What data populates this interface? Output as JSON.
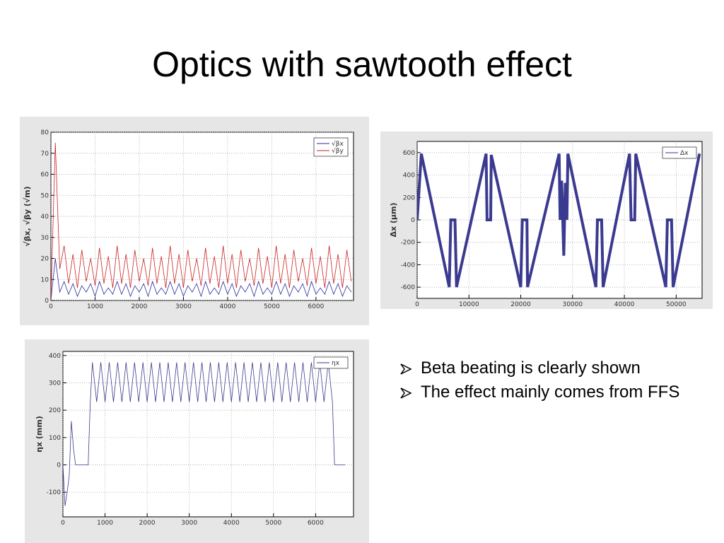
{
  "title": "Optics with sawtooth effect",
  "bullets": [
    "Beta beating is clearly shown",
    "The effect mainly comes from FFS"
  ],
  "chart_data": [
    {
      "type": "line",
      "ylabel": "√βx, √βy (√m)",
      "legend": "upper right",
      "grid": true,
      "xlim": [
        0,
        6850
      ],
      "ylim": [
        0,
        80
      ],
      "xticks": [
        0,
        1000,
        2000,
        3000,
        4000,
        5000,
        6000
      ],
      "yticks": [
        0,
        10,
        20,
        30,
        40,
        50,
        60,
        70,
        80
      ],
      "x": [
        0,
        100,
        200,
        300,
        400,
        500,
        600,
        700,
        800,
        900,
        1000,
        1100,
        1200,
        1300,
        1400,
        1500,
        1600,
        1700,
        1800,
        1900,
        2000,
        2100,
        2200,
        2300,
        2400,
        2500,
        2600,
        2700,
        2800,
        2900,
        3000,
        3100,
        3200,
        3300,
        3400,
        3500,
        3600,
        3700,
        3800,
        3900,
        4000,
        4100,
        4200,
        4300,
        4400,
        4500,
        4600,
        4700,
        4800,
        4900,
        5000,
        5100,
        5200,
        5300,
        5400,
        5500,
        5600,
        5700,
        5800,
        5900,
        6000,
        6100,
        6200,
        6300,
        6400,
        6500,
        6600,
        6700,
        6800
      ],
      "series": [
        {
          "name": "√βx",
          "color": "#2a2aa0",
          "values": [
            0,
            20,
            4,
            9,
            3,
            8,
            2,
            7,
            4,
            8,
            2,
            9,
            3,
            6,
            3,
            9,
            3,
            8,
            2,
            7,
            4,
            8,
            2,
            9,
            3,
            6,
            3,
            9,
            3,
            8,
            2,
            7,
            4,
            8,
            2,
            9,
            3,
            6,
            3,
            9,
            3,
            8,
            2,
            7,
            4,
            8,
            2,
            9,
            3,
            6,
            3,
            9,
            3,
            8,
            2,
            7,
            4,
            8,
            2,
            9,
            3,
            6,
            3,
            9,
            3,
            8,
            2,
            7,
            4
          ]
        },
        {
          "name": "√βy",
          "color": "#cc2222",
          "values": [
            0,
            75,
            15,
            26,
            8,
            22,
            6,
            24,
            9,
            20,
            7,
            25,
            8,
            21,
            6,
            26,
            8,
            22,
            6,
            24,
            9,
            20,
            7,
            25,
            8,
            21,
            6,
            26,
            8,
            22,
            6,
            24,
            9,
            20,
            7,
            25,
            8,
            21,
            6,
            26,
            8,
            22,
            6,
            24,
            9,
            20,
            7,
            25,
            8,
            21,
            6,
            26,
            8,
            22,
            6,
            24,
            9,
            20,
            7,
            25,
            8,
            21,
            6,
            26,
            8,
            22,
            6,
            24,
            9
          ]
        }
      ]
    },
    {
      "type": "line",
      "ylabel": "Δx (μm)",
      "legend": "upper right",
      "grid": true,
      "xlim": [
        0,
        55000
      ],
      "ylim": [
        -700,
        700
      ],
      "xticks": [
        0,
        10000,
        20000,
        30000,
        40000,
        50000
      ],
      "yticks": [
        -600,
        -400,
        -200,
        0,
        200,
        400,
        600
      ],
      "x": [
        0,
        800,
        6200,
        6500,
        7300,
        7600,
        13300,
        13500,
        14200,
        14300,
        20000,
        20300,
        21200,
        21300,
        27400,
        27600,
        27900,
        28300,
        28600,
        28900,
        29100,
        34500,
        34800,
        35600,
        35900,
        41000,
        41300,
        42000,
        42200,
        48000,
        48300,
        49100,
        49400,
        54500
      ],
      "series": [
        {
          "name": "Δx",
          "color": "#3a3a90",
          "values": [
            0,
            590,
            -600,
            0,
            0,
            -600,
            590,
            0,
            0,
            580,
            -600,
            0,
            0,
            -600,
            590,
            0,
            350,
            -320,
            330,
            0,
            590,
            -600,
            0,
            0,
            -600,
            590,
            0,
            0,
            590,
            -600,
            0,
            0,
            -600,
            590
          ]
        }
      ]
    },
    {
      "type": "line",
      "ylabel": "ηx (mm)",
      "legend": "upper right",
      "grid": true,
      "xlim": [
        0,
        6900
      ],
      "ylim": [
        -190,
        415
      ],
      "xticks": [
        0,
        1000,
        2000,
        3000,
        4000,
        5000,
        6000
      ],
      "yticks": [
        -100,
        0,
        100,
        200,
        300,
        400
      ],
      "x": [
        0,
        50,
        100,
        150,
        200,
        250,
        300,
        600,
        650,
        700,
        800,
        900,
        1000,
        1100,
        1200,
        1300,
        1400,
        1500,
        1600,
        1700,
        1800,
        1900,
        2000,
        2100,
        2200,
        2300,
        2400,
        2500,
        2600,
        2700,
        2800,
        2900,
        3000,
        3100,
        3200,
        3300,
        3400,
        3500,
        3600,
        3700,
        3800,
        3900,
        4000,
        4100,
        4200,
        4300,
        4400,
        4500,
        4600,
        4700,
        4800,
        4900,
        5000,
        5100,
        5200,
        5300,
        5400,
        5500,
        5600,
        5700,
        5800,
        5900,
        6000,
        6100,
        6200,
        6300,
        6400,
        6450,
        6700
      ],
      "series": [
        {
          "name": "ηx",
          "color": "#3a3a90",
          "values": [
            0,
            -150,
            -100,
            -40,
            160,
            60,
            0,
            0,
            230,
            375,
            230,
            375,
            230,
            375,
            230,
            375,
            230,
            375,
            230,
            375,
            230,
            375,
            230,
            375,
            230,
            375,
            230,
            375,
            230,
            375,
            230,
            375,
            230,
            375,
            230,
            375,
            230,
            375,
            230,
            375,
            230,
            375,
            230,
            375,
            230,
            375,
            230,
            375,
            230,
            375,
            230,
            375,
            230,
            375,
            230,
            375,
            230,
            375,
            230,
            375,
            230,
            375,
            230,
            375,
            230,
            375,
            230,
            0,
            0
          ]
        }
      ]
    }
  ]
}
